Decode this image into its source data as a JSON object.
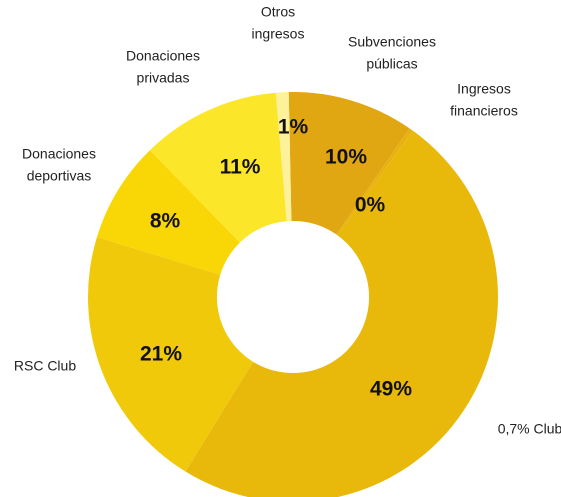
{
  "chart_data": {
    "type": "pie",
    "donut": true,
    "title": "",
    "legend": "none",
    "slices": [
      {
        "name": "Subvenciones públicas",
        "label_lines": [
          "Subvenciones",
          "públicas"
        ],
        "value": 10,
        "pct_label": "10%",
        "color": "#e0a712"
      },
      {
        "name": "Ingresos financieros",
        "label_lines": [
          "Ingresos",
          "financieros"
        ],
        "value": 0.3,
        "pct_label": "0%",
        "color": "#e7b211"
      },
      {
        "name": "0,7% Club",
        "label_lines": [
          "0,7% Club"
        ],
        "value": 49,
        "pct_label": "49%",
        "color": "#e8b90a"
      },
      {
        "name": "RSC Club",
        "label_lines": [
          "RSC Club"
        ],
        "value": 21,
        "pct_label": "21%",
        "color": "#f0c90a"
      },
      {
        "name": "Donaciones deportivas",
        "label_lines": [
          "Donaciones",
          "deportivas"
        ],
        "value": 8,
        "pct_label": "8%",
        "color": "#f9d606"
      },
      {
        "name": "Donaciones privadas",
        "label_lines": [
          "Donaciones",
          "privadas"
        ],
        "value": 11,
        "pct_label": "11%",
        "color": "#fce62a"
      },
      {
        "name": "Otros ingresos",
        "label_lines": [
          "Otros",
          "ingresos"
        ],
        "value": 1,
        "pct_label": "1%",
        "color": "#fdf19c"
      }
    ]
  }
}
